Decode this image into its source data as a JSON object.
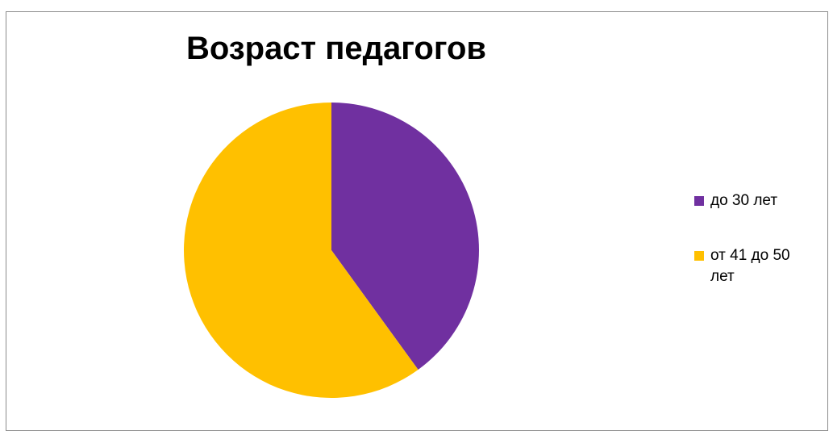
{
  "chart_data": {
    "type": "pie",
    "title": "Возраст педагогов",
    "categories": [
      "до 30 лет",
      "от 41 до 50 лет"
    ],
    "values": [
      40,
      60
    ],
    "colors": [
      "#7030a0",
      "#ffc000"
    ],
    "legend_position": "right",
    "start_angle": "12 o'clock",
    "direction": "clockwise"
  }
}
